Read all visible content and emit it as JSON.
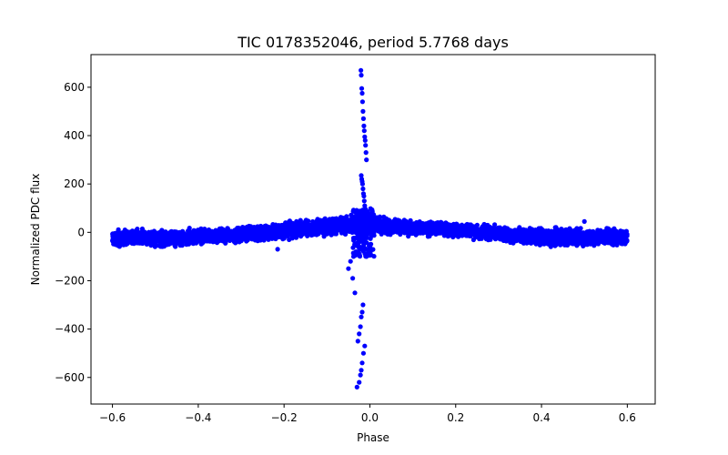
{
  "chart_data": {
    "type": "scatter",
    "title": "TIC 0178352046, period 5.7768 days",
    "xlabel": "Phase",
    "ylabel": "Normalized PDC flux",
    "xlim": [
      -0.65,
      0.665
    ],
    "ylim": [
      -710,
      735
    ],
    "xticks": [
      -0.6,
      -0.4,
      -0.2,
      0.0,
      0.2,
      0.4,
      0.6
    ],
    "xtick_labels": [
      "−0.6",
      "−0.4",
      "−0.2",
      "0.0",
      "0.2",
      "0.4",
      "0.6"
    ],
    "yticks": [
      -600,
      -400,
      -200,
      0,
      200,
      400,
      600
    ],
    "ytick_labels": [
      "−600",
      "−400",
      "−200",
      "0",
      "200",
      "400",
      "600"
    ],
    "grid": false,
    "marker_color": "#0000ff",
    "series": [
      {
        "name": "",
        "band_envelope": {
          "x": [
            -0.6,
            -0.55,
            -0.5,
            -0.45,
            -0.4,
            -0.35,
            -0.3,
            -0.25,
            -0.2,
            -0.15,
            -0.1,
            -0.05,
            -0.02,
            0.0,
            0.05,
            0.1,
            0.15,
            0.2,
            0.25,
            0.3,
            0.35,
            0.4,
            0.45,
            0.5,
            0.55,
            0.6
          ],
          "lower": [
            -60,
            -60,
            -65,
            -62,
            -55,
            -50,
            -45,
            -40,
            -30,
            -20,
            -15,
            -10,
            -10,
            -5,
            -10,
            -15,
            -18,
            -20,
            -30,
            -40,
            -50,
            -60,
            -60,
            -62,
            -60,
            -60
          ],
          "upper": [
            10,
            15,
            10,
            12,
            15,
            20,
            25,
            35,
            45,
            55,
            65,
            70,
            80,
            70,
            60,
            50,
            45,
            45,
            35,
            30,
            25,
            20,
            25,
            15,
            20,
            15
          ]
        },
        "outliers": {
          "x": [
            -0.021,
            -0.02,
            -0.019,
            -0.018,
            -0.017,
            -0.016,
            -0.015,
            -0.014,
            -0.013,
            -0.012,
            -0.011,
            -0.01,
            -0.009,
            -0.008,
            -0.02,
            -0.019,
            -0.018,
            -0.017,
            -0.016,
            -0.015,
            -0.014,
            -0.013,
            -0.012,
            -0.011,
            -0.01,
            -0.009,
            -0.03,
            -0.025,
            -0.022,
            -0.02,
            -0.018,
            -0.015,
            -0.012,
            -0.028,
            -0.025,
            -0.022,
            -0.02,
            -0.018,
            -0.016,
            -0.035,
            -0.04,
            -0.05,
            -0.045,
            -0.038,
            -0.032,
            -0.027,
            -0.215,
            0.5
          ],
          "y": [
            670,
            650,
            595,
            575,
            540,
            500,
            470,
            440,
            420,
            395,
            380,
            360,
            330,
            300,
            235,
            220,
            210,
            200,
            180,
            160,
            150,
            130,
            110,
            90,
            80,
            60,
            -640,
            -620,
            -590,
            -570,
            -540,
            -500,
            -470,
            -450,
            -420,
            -390,
            -350,
            -330,
            -300,
            -250,
            -190,
            -150,
            -120,
            -100,
            -80,
            -60,
            -70,
            45
          ]
        }
      }
    ]
  }
}
